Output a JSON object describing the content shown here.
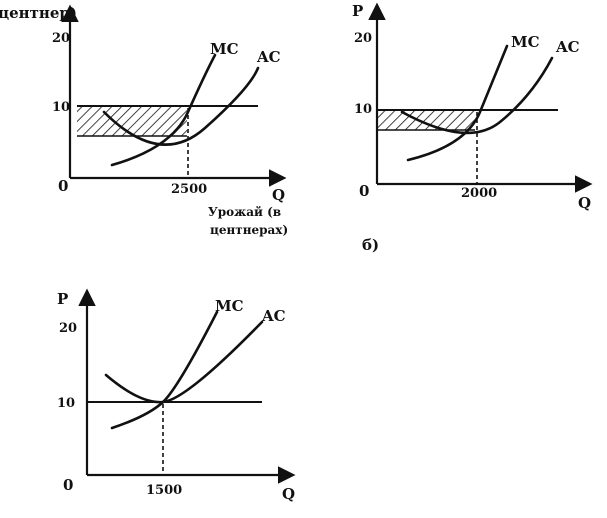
{
  "panels": [
    {
      "id": "a",
      "y_axis_label": "центнер)",
      "x_axis_label": "Q",
      "y_ticks": [
        "20",
        "10"
      ],
      "origin": "0",
      "x_tick": "2500",
      "mc_label": "MC",
      "ac_label": "AC",
      "caption_line1": "Урожай (в",
      "caption_line2": "центнерах)",
      "price": 10,
      "quantity": 2500,
      "hatched_area": "loss"
    },
    {
      "id": "b",
      "y_axis_label": "P",
      "x_axis_label": "Q",
      "y_ticks": [
        "20",
        "10"
      ],
      "origin": "0",
      "x_tick": "2000",
      "mc_label": "MC",
      "ac_label": "AC",
      "panel_label": "б)",
      "price": 10,
      "quantity": 2000,
      "hatched_area": "profit"
    },
    {
      "id": "c",
      "y_axis_label": "P",
      "x_axis_label": "Q",
      "y_ticks": [
        "20",
        "10"
      ],
      "origin": "0",
      "x_tick": "1500",
      "mc_label": "MC",
      "ac_label": "AC",
      "price": 10,
      "quantity": 1500,
      "hatched_area": "none"
    }
  ]
}
